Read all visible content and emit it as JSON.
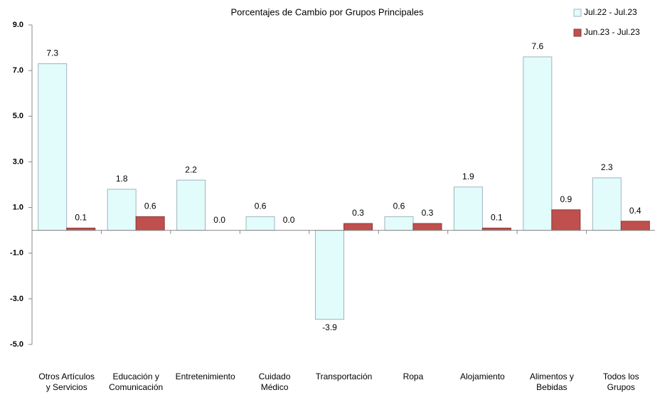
{
  "chart_data": {
    "type": "bar",
    "title": "Porcentajes de Cambio por Grupos Principales",
    "categories": [
      "Otros Artículos\ny Servicios",
      "Educación y\nComunicación",
      "Entretenimiento",
      "Cuidado\nMédico",
      "Transportación",
      "Ropa",
      "Alojamiento",
      "Alimentos y\nBebidas",
      "Todos los\nGrupos"
    ],
    "series": [
      {
        "name": "Jul.22 - Jul.23",
        "color": "#e2fbfb",
        "values": [
          7.3,
          1.8,
          2.2,
          0.6,
          -3.9,
          0.6,
          1.9,
          7.6,
          2.3
        ],
        "value_labels": [
          "7.3",
          "1.8",
          "2.2",
          "0.6",
          "-3.9",
          "0.6",
          "1.9",
          "7.6",
          "2.3"
        ]
      },
      {
        "name": "Jun.23 - Jul.23",
        "color": "#c0504d",
        "values": [
          0.1,
          0.6,
          0,
          0,
          0.3,
          0.3,
          0.1,
          0.9,
          0.4
        ],
        "value_labels": [
          "0.1",
          "0.6",
          "0.0",
          "0.0",
          "0.3",
          "0.3",
          "0.1",
          "0.9",
          "0.4"
        ]
      }
    ],
    "ylim": [
      -5,
      9
    ],
    "yticks": [
      {
        "value": -5,
        "label": "-5.0"
      },
      {
        "value": -3,
        "label": "-3.0"
      },
      {
        "value": -1,
        "label": "-1.0"
      },
      {
        "value": 1,
        "label": "1.0"
      },
      {
        "value": 3,
        "label": "3.0"
      },
      {
        "value": 5,
        "label": "5.0"
      },
      {
        "value": 7,
        "label": "7.0"
      },
      {
        "value": 9,
        "label": "9.0"
      }
    ],
    "legend": "top-right",
    "grid": false
  }
}
